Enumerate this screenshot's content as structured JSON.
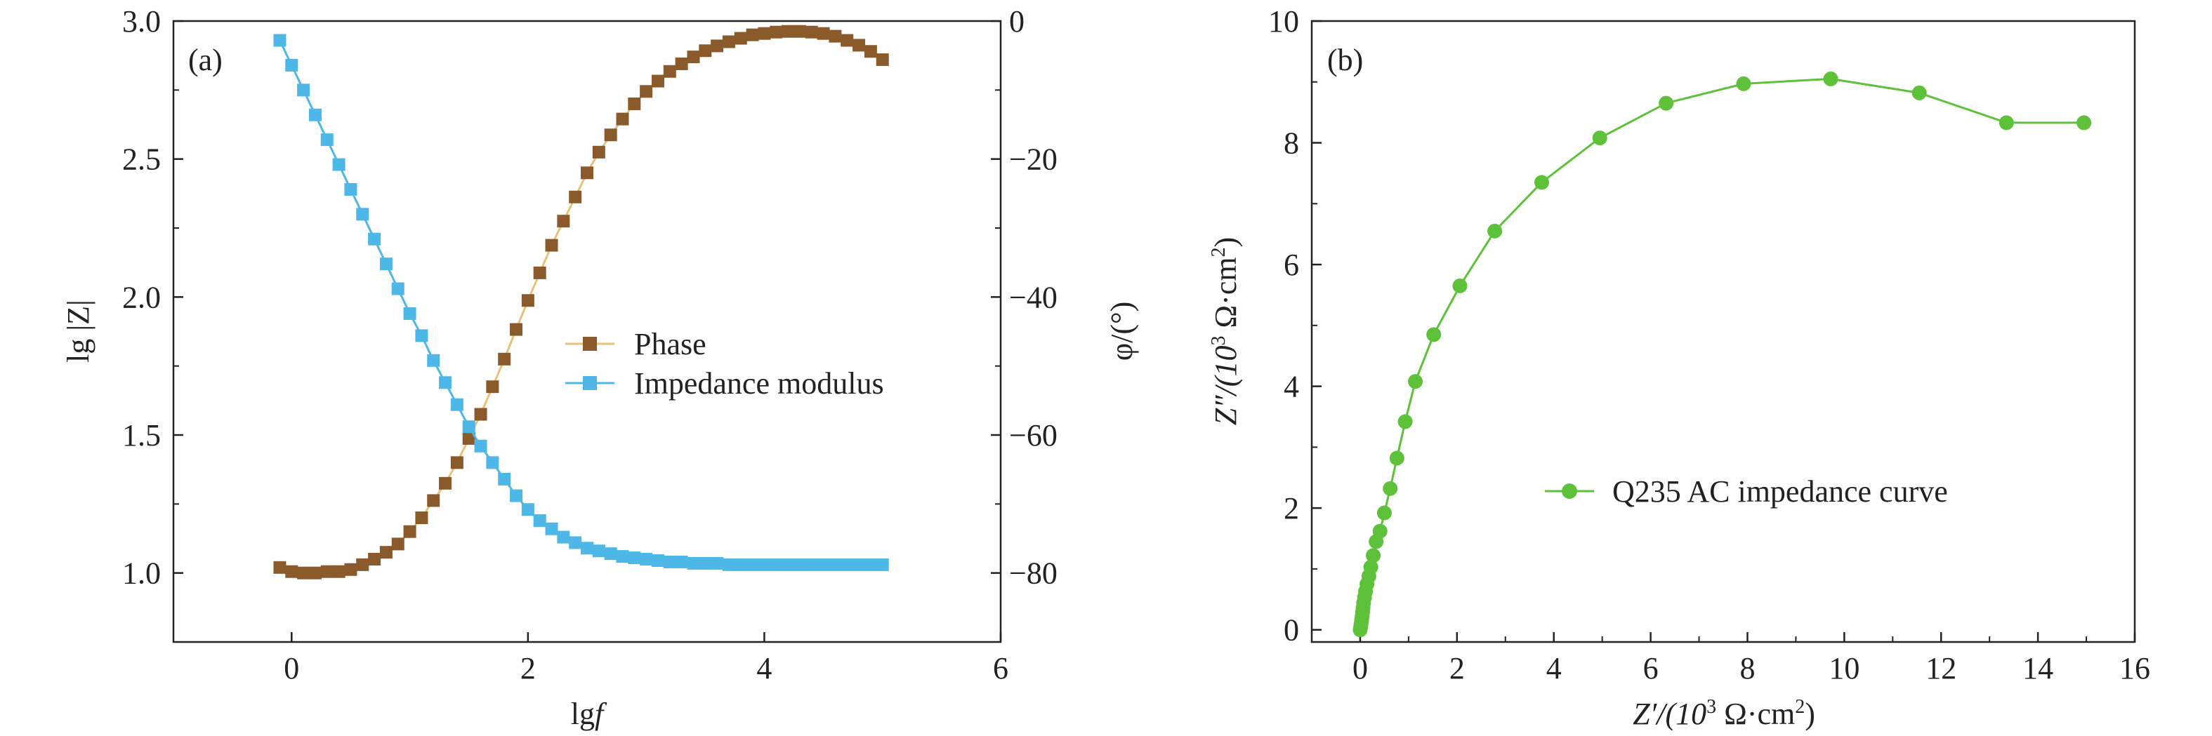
{
  "chart_data": [
    {
      "type": "line",
      "panel_label": "(a)",
      "xlabel_main": "lg",
      "xlabel_var": "f",
      "ylabel_left": "lg |Z|",
      "ylabel_right": "φ/(°)",
      "xlim": [
        -1,
        6
      ],
      "ylim_left": [
        0.75,
        3.0
      ],
      "ylim_right": [
        -90,
        0
      ],
      "xticks": [
        "0",
        "2",
        "4",
        "6"
      ],
      "yticks_left": [
        "1.0",
        "1.5",
        "2.0",
        "2.5",
        "3.0"
      ],
      "yticks_right": [
        "−80",
        "−60",
        "−40",
        "−20",
        "0"
      ],
      "legend_position": "center-right",
      "x": [
        -0.1,
        0.0,
        0.1,
        0.2,
        0.3,
        0.4,
        0.5,
        0.6,
        0.7,
        0.8,
        0.9,
        1.0,
        1.1,
        1.2,
        1.3,
        1.4,
        1.5,
        1.6,
        1.7,
        1.8,
        1.9,
        2.0,
        2.1,
        2.2,
        2.3,
        2.4,
        2.5,
        2.6,
        2.7,
        2.8,
        2.9,
        3.0,
        3.1,
        3.2,
        3.3,
        3.4,
        3.5,
        3.6,
        3.7,
        3.8,
        3.9,
        4.0,
        4.1,
        4.2,
        4.3,
        4.4,
        4.5,
        4.6,
        4.7,
        4.8,
        4.9,
        5.0
      ],
      "series": [
        {
          "name": "Phase",
          "axis": "right",
          "color": "#8B5A2B",
          "line_color": "#E8C27A",
          "values": [
            -79.2,
            -79.8,
            -80.0,
            -80.0,
            -79.8,
            -79.8,
            -79.5,
            -78.8,
            -78.0,
            -77.0,
            -75.8,
            -74.0,
            -72.0,
            -69.5,
            -67.0,
            -64.0,
            -60.5,
            -57.0,
            -53.0,
            -49.0,
            -44.7,
            -40.5,
            -36.5,
            -32.5,
            -29.0,
            -25.5,
            -22.0,
            -19.0,
            -16.5,
            -14.2,
            -12.0,
            -10.2,
            -8.7,
            -7.3,
            -6.2,
            -5.2,
            -4.3,
            -3.6,
            -3.0,
            -2.5,
            -2.0,
            -1.8,
            -1.6,
            -1.5,
            -1.5,
            -1.6,
            -1.8,
            -2.2,
            -2.8,
            -3.5,
            -4.4,
            -5.6
          ]
        },
        {
          "name": "Impedance modulus",
          "axis": "left",
          "color": "#4DB8E8",
          "line_color": "#4DB8E8",
          "values": [
            2.93,
            2.84,
            2.75,
            2.66,
            2.57,
            2.48,
            2.39,
            2.3,
            2.21,
            2.12,
            2.03,
            1.94,
            1.86,
            1.77,
            1.69,
            1.61,
            1.53,
            1.46,
            1.4,
            1.34,
            1.28,
            1.23,
            1.19,
            1.16,
            1.13,
            1.11,
            1.09,
            1.08,
            1.07,
            1.06,
            1.055,
            1.05,
            1.045,
            1.04,
            1.04,
            1.035,
            1.035,
            1.035,
            1.03,
            1.03,
            1.03,
            1.03,
            1.03,
            1.03,
            1.03,
            1.03,
            1.03,
            1.03,
            1.03,
            1.03,
            1.03,
            1.03
          ]
        }
      ]
    },
    {
      "type": "scatter",
      "panel_label": "(b)",
      "xlabel_prefix": "Z′/(10",
      "xlabel_sup": "3",
      "xlabel_suffix": " Ω·cm",
      "xlabel_sup2": "2",
      "xlabel_end": ")",
      "ylabel_prefix": "Z″/(10",
      "ylabel_sup": "3",
      "ylabel_suffix": " Ω·cm",
      "ylabel_sup2": "2",
      "ylabel_end": ")",
      "xlim": [
        -1,
        16
      ],
      "ylim": [
        -0.2,
        10
      ],
      "xticks": [
        "0",
        "2",
        "4",
        "6",
        "8",
        "10",
        "12",
        "14",
        "16"
      ],
      "yticks": [
        "0",
        "2",
        "4",
        "6",
        "8",
        "10"
      ],
      "legend_position": "center-right",
      "series": [
        {
          "name": "Q235 AC impedance curve",
          "color": "#5DC23A",
          "x": [
            0.0,
            0.01,
            0.02,
            0.03,
            0.04,
            0.05,
            0.06,
            0.07,
            0.09,
            0.11,
            0.14,
            0.18,
            0.22,
            0.27,
            0.33,
            0.41,
            0.5,
            0.62,
            0.76,
            0.93,
            1.14,
            1.52,
            2.06,
            2.78,
            3.75,
            4.95,
            6.32,
            7.92,
            9.72,
            11.55,
            13.35,
            14.95
          ],
          "y": [
            0.0,
            0.05,
            0.1,
            0.16,
            0.22,
            0.29,
            0.36,
            0.44,
            0.53,
            0.63,
            0.75,
            0.88,
            1.03,
            1.22,
            1.45,
            1.62,
            1.92,
            2.32,
            2.82,
            3.42,
            4.08,
            4.85,
            5.65,
            6.55,
            7.35,
            8.08,
            8.65,
            8.97,
            9.05,
            8.82,
            8.33,
            8.33
          ]
        }
      ]
    }
  ]
}
